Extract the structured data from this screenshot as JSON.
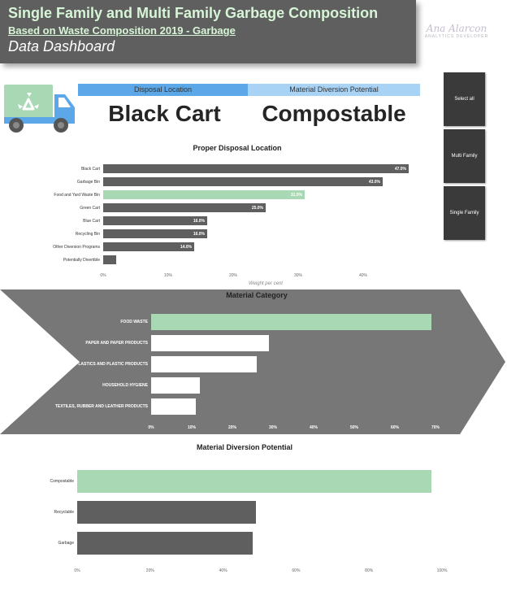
{
  "header": {
    "title": "Single Family and Multi Family Garbage Composition",
    "subtitle": "Based on Waste Composition 2019 - Garbage",
    "tagline": "Data Dashboard"
  },
  "logo": {
    "name": "Ana Alarcon",
    "sub": "ANALYTICS DEVELOPER"
  },
  "kpi": {
    "disposal_header": "Disposal Location",
    "diversion_header": "Material Diversion Potential",
    "disposal_value": "Black Cart",
    "diversion_value": "Compostable"
  },
  "slicers": [
    "Select all",
    "Multi Family",
    "Single Family"
  ],
  "colors": {
    "bar": "#5f5f5f",
    "highlight": "#a8d8b4",
    "kpi_left": "#5ba7e8",
    "kpi_right": "#a9d3f5",
    "arrow": "#777777"
  },
  "chart_data": [
    {
      "type": "bar",
      "title": "Proper Disposal Location",
      "xlabel": "Weight per cent",
      "categories": [
        "Black Cart",
        "Garbage Bin",
        "Food and Yard Waste Bin",
        "Green Cart",
        "Blue Cart",
        "Recycling Bin",
        "Other Diversion Programs",
        "Potentially Divertible"
      ],
      "values": [
        47.0,
        43.0,
        31.0,
        25.0,
        16.0,
        16.0,
        14.0,
        2.0
      ],
      "labels": [
        "47.0%",
        "43.0%",
        "31.0%",
        "25.0%",
        "16.0%",
        "16.0%",
        "14.0%",
        ""
      ],
      "highlight_index": 2,
      "xlim": [
        0,
        50
      ],
      "xticks": [
        "0%",
        "10%",
        "20%",
        "30%",
        "40%"
      ],
      "tick_values": [
        0,
        10,
        20,
        30,
        40
      ]
    },
    {
      "type": "bar",
      "title": "Material Category",
      "categories": [
        "FOOD WASTE",
        "PAPER AND PAPER PRODUCTS",
        "PLASTICS AND PLASTIC PRODUCTS",
        "HOUSEHOLD HYGIENE",
        "TEXTILES, RUBBER AND LEATHER PRODUCTS"
      ],
      "values": [
        69,
        29,
        26,
        12,
        11
      ],
      "highlight_index": 0,
      "xlim": [
        0,
        70
      ],
      "xticks": [
        "0%",
        "10%",
        "20%",
        "30%",
        "40%",
        "50%",
        "60%",
        "70%"
      ],
      "tick_values": [
        0,
        10,
        20,
        30,
        40,
        50,
        60,
        70
      ]
    },
    {
      "type": "bar",
      "title": "Material Diversion Potential",
      "categories": [
        "Compostable",
        "Recyclable",
        "Garbage"
      ],
      "values": [
        97,
        49,
        48
      ],
      "highlight_index": 0,
      "xlim": [
        0,
        100
      ],
      "xticks": [
        "0%",
        "20%",
        "40%",
        "60%",
        "80%",
        "100%"
      ],
      "tick_values": [
        0,
        20,
        40,
        60,
        80,
        100
      ]
    }
  ]
}
